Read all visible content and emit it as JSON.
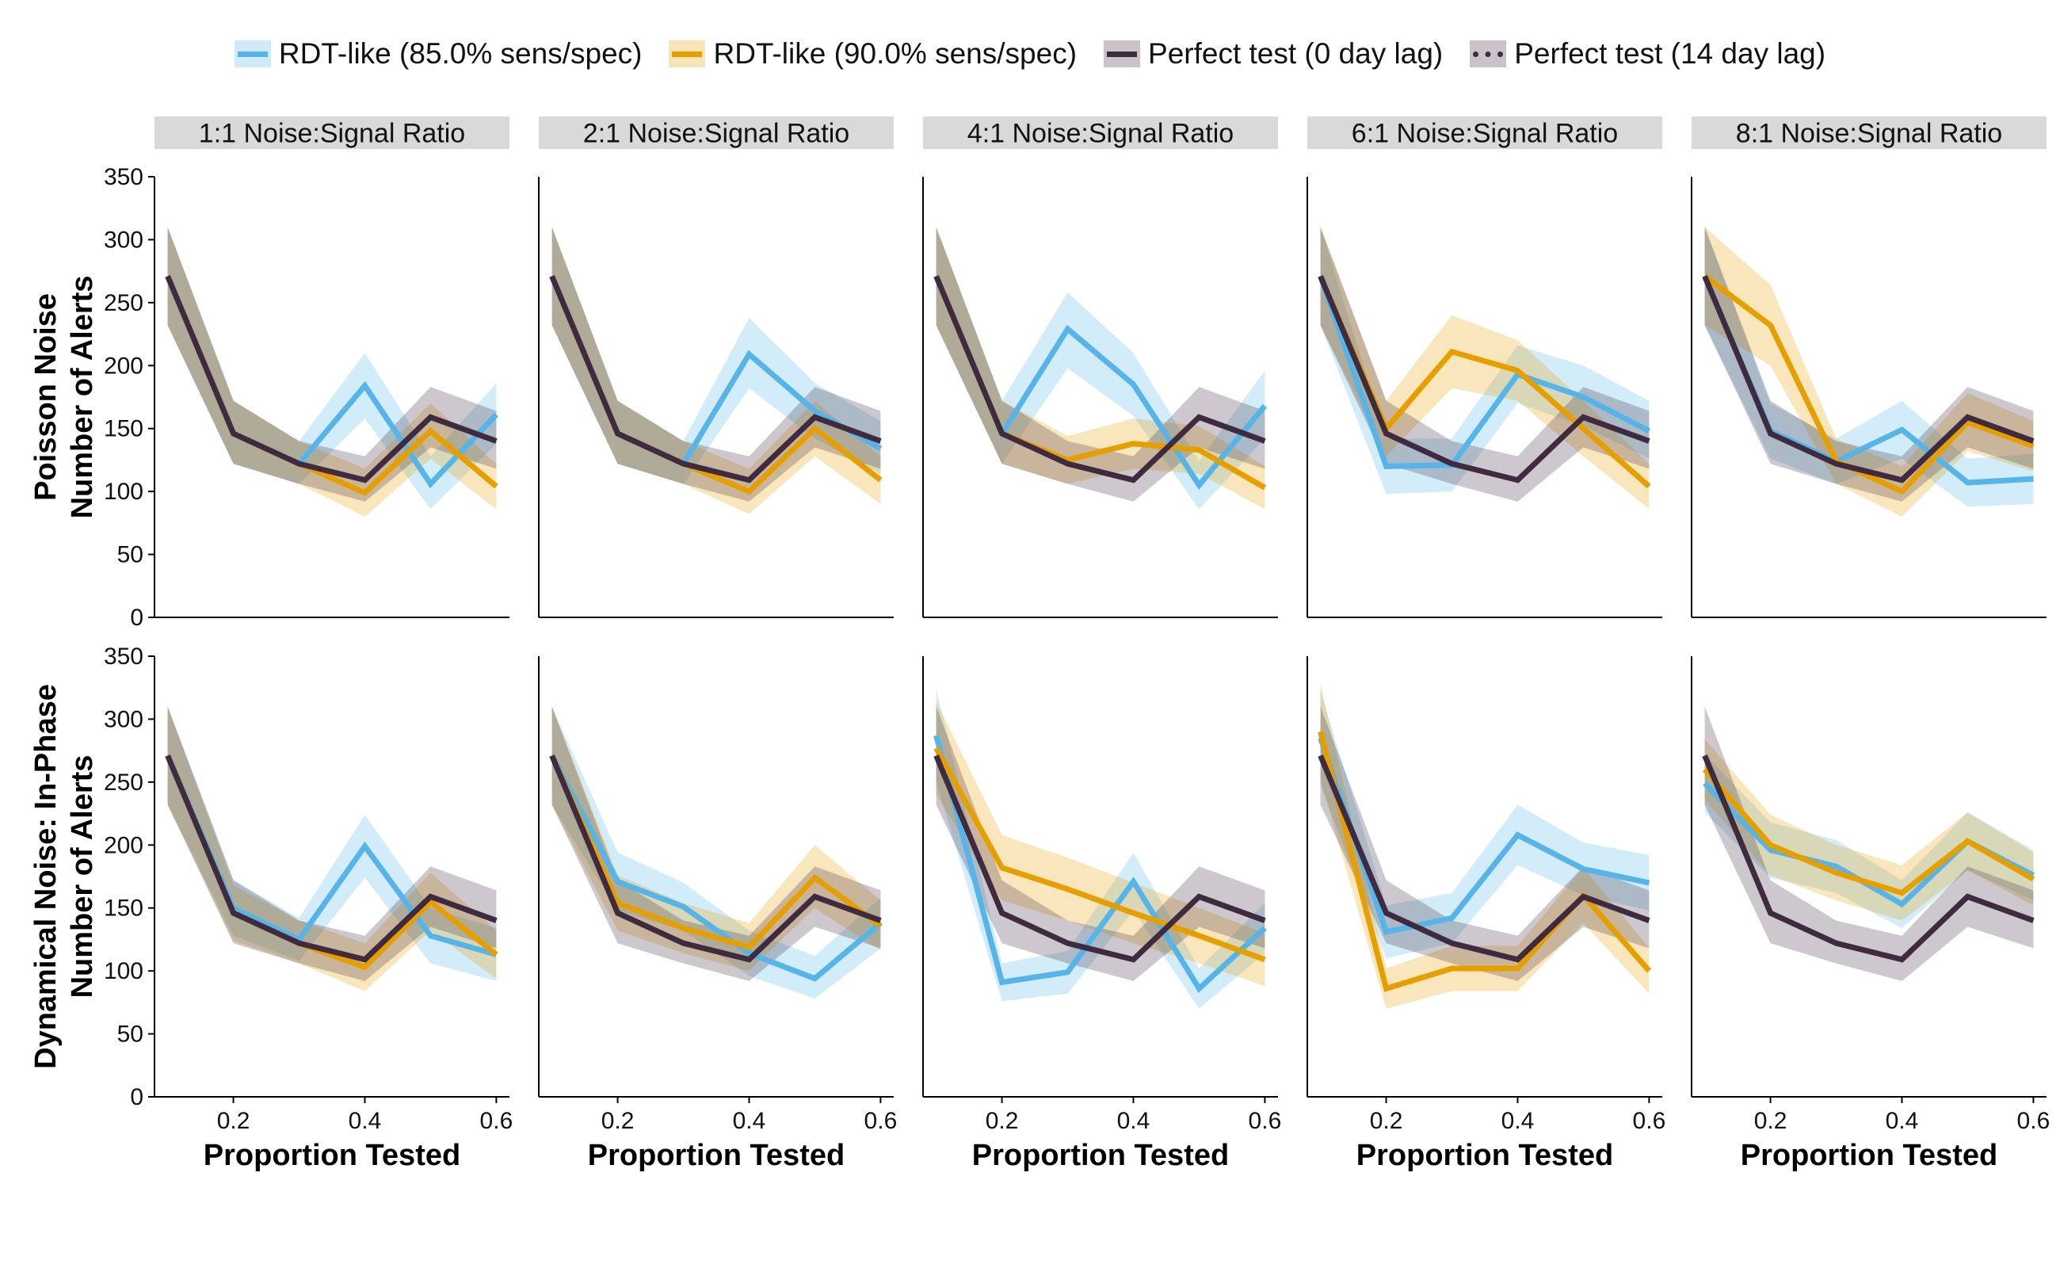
{
  "legend": {
    "placement": "top",
    "items": [
      {
        "label": "RDT-like (85.0% sens/spec)",
        "color": "#56B4E9",
        "style": "solid"
      },
      {
        "label": "RDT-like (90.0% sens/spec)",
        "color": "#E69F00",
        "style": "solid"
      },
      {
        "label": "Perfect test (0 day lag)",
        "color": "#3F2A3F",
        "style": "solid"
      },
      {
        "label": "Perfect test (14 day lag)",
        "color": "#3F2A3F",
        "style": "dotted"
      }
    ]
  },
  "colors": {
    "rdt85": "#56B4E9",
    "rdt90": "#E69F00",
    "perfect": "#3F2A3F",
    "strip_bg": "#D9D9D9"
  },
  "chart_data": {
    "type": "line",
    "columns": [
      "1:1 Noise:Signal Ratio",
      "2:1 Noise:Signal Ratio",
      "4:1 Noise:Signal Ratio",
      "6:1 Noise:Signal Ratio",
      "8:1 Noise:Signal Ratio"
    ],
    "rows": [
      {
        "label": "Poisson Noise\nNumber of Alerts",
        "line1": "Poisson Noise",
        "line2": "Number of Alerts"
      },
      {
        "label": "Dynamical Noise: In-Phase\nNumber of Alerts",
        "line1": "Dynamical Noise: In-Phase",
        "line2": "Number of Alerts"
      }
    ],
    "xlabel": "Proportion Tested",
    "x": [
      0.1,
      0.2,
      0.3,
      0.4,
      0.5,
      0.6
    ],
    "xlim": [
      0.08,
      0.62
    ],
    "xticks": [
      0.2,
      0.4,
      0.6
    ],
    "xtick_labels": [
      "0.2",
      "0.4",
      "0.6"
    ],
    "ylim": [
      0,
      350
    ],
    "yticks": [
      0,
      50,
      100,
      150,
      200,
      250,
      300,
      350
    ],
    "ytick_labels": [
      "0",
      "50",
      "100",
      "150",
      "200",
      "250",
      "300",
      "350"
    ],
    "panels": [
      [
        {
          "perfect": {
            "y": [
              271,
              146,
              122,
              109,
              159,
              140
            ],
            "lo": [
              232,
              122,
              106,
              92,
              135,
              118
            ],
            "hi": [
              310,
              172,
              140,
              128,
              183,
              164
            ]
          },
          "rdt85": {
            "y": [
              271,
              146,
              122,
              184,
              106,
              161
            ],
            "lo": [
              232,
              122,
              106,
              158,
              86,
              138
            ],
            "hi": [
              310,
              172,
              140,
              210,
              128,
              186
            ]
          },
          "rdt90": {
            "y": [
              271,
              146,
              122,
              99,
              148,
              104
            ],
            "lo": [
              232,
              122,
              106,
              80,
              126,
              86
            ],
            "hi": [
              310,
              172,
              140,
              118,
              170,
              122
            ]
          }
        },
        {
          "perfect": {
            "y": [
              271,
              146,
              122,
              109,
              159,
              140
            ],
            "lo": [
              232,
              122,
              106,
              92,
              135,
              118
            ],
            "hi": [
              310,
              172,
              140,
              128,
              183,
              164
            ]
          },
          "rdt85": {
            "y": [
              271,
              146,
              122,
              209,
              164,
              134
            ],
            "lo": [
              232,
              122,
              106,
              182,
              142,
              114
            ],
            "hi": [
              310,
              172,
              140,
              238,
              186,
              156
            ]
          },
          "rdt90": {
            "y": [
              271,
              146,
              122,
              100,
              150,
              109
            ],
            "lo": [
              232,
              122,
              106,
              82,
              128,
              90
            ],
            "hi": [
              310,
              172,
              140,
              118,
              172,
              128
            ]
          }
        },
        {
          "perfect": {
            "y": [
              271,
              146,
              122,
              109,
              159,
              140
            ],
            "lo": [
              232,
              122,
              106,
              92,
              135,
              118
            ],
            "hi": [
              310,
              172,
              140,
              128,
              183,
              164
            ]
          },
          "rdt85": {
            "y": [
              271,
              146,
              229,
              185,
              105,
              168
            ],
            "lo": [
              232,
              122,
              198,
              160,
              86,
              142
            ],
            "hi": [
              310,
              172,
              258,
              210,
              124,
              196
            ]
          },
          "rdt90": {
            "y": [
              271,
              146,
              125,
              138,
              133,
              103
            ],
            "lo": [
              232,
              122,
              106,
              118,
              114,
              86
            ],
            "hi": [
              310,
              172,
              144,
              158,
              152,
              120
            ]
          }
        },
        {
          "perfect": {
            "y": [
              271,
              146,
              122,
              109,
              159,
              140
            ],
            "lo": [
              232,
              122,
              106,
              92,
              135,
              118
            ],
            "hi": [
              310,
              172,
              140,
              128,
              183,
              164
            ]
          },
          "rdt85": {
            "y": [
              271,
              120,
              121,
              193,
              175,
              148
            ],
            "lo": [
              232,
              98,
              100,
              170,
              152,
              126
            ],
            "hi": [
              310,
              142,
              142,
              216,
              200,
              172
            ]
          },
          "rdt90": {
            "y": [
              271,
              150,
              211,
              196,
              150,
              104
            ],
            "lo": [
              232,
              128,
              182,
              172,
              128,
              86
            ],
            "hi": [
              310,
              172,
              240,
              220,
              172,
              122
            ]
          }
        },
        {
          "perfect": {
            "y": [
              271,
              146,
              122,
              109,
              159,
              140
            ],
            "lo": [
              232,
              122,
              106,
              92,
              135,
              118
            ],
            "hi": [
              310,
              172,
              140,
              128,
              183,
              164
            ]
          },
          "rdt85": {
            "y": [
              271,
              148,
              124,
              149,
              107,
              110
            ],
            "lo": [
              232,
              126,
              106,
              126,
              88,
              90
            ],
            "hi": [
              310,
              170,
              142,
              172,
              126,
              130
            ]
          },
          "rdt90": {
            "y": [
              271,
              232,
              124,
              100,
              155,
              136
            ],
            "lo": [
              232,
              200,
              106,
              80,
              132,
              116
            ],
            "hi": [
              310,
              264,
              142,
              120,
              178,
              156
            ]
          }
        }
      ],
      [
        {
          "perfect": {
            "y": [
              271,
              146,
              122,
              109,
              159,
              140
            ],
            "lo": [
              232,
              122,
              106,
              92,
              135,
              118
            ],
            "hi": [
              310,
              172,
              140,
              128,
              183,
              164
            ]
          },
          "rdt85": {
            "y": [
              271,
              150,
              125,
              199,
              128,
              113
            ],
            "lo": [
              232,
              128,
              108,
              174,
              106,
              92
            ],
            "hi": [
              310,
              172,
              142,
              224,
              150,
              134
            ]
          },
          "rdt90": {
            "y": [
              271,
              146,
              122,
              103,
              155,
              113
            ],
            "lo": [
              232,
              124,
              106,
              84,
              132,
              94
            ],
            "hi": [
              310,
              168,
              140,
              122,
              178,
              132
            ]
          }
        },
        {
          "perfect": {
            "y": [
              271,
              146,
              122,
              109,
              159,
              140
            ],
            "lo": [
              232,
              122,
              106,
              92,
              135,
              118
            ],
            "hi": [
              310,
              172,
              140,
              128,
              183,
              164
            ]
          },
          "rdt85": {
            "y": [
              271,
              171,
              151,
              114,
              94,
              138
            ],
            "lo": [
              232,
              148,
              132,
              96,
              78,
              118
            ],
            "hi": [
              310,
              194,
              170,
              132,
              112,
              158
            ]
          },
          "rdt90": {
            "y": [
              271,
              154,
              134,
              119,
              174,
              136
            ],
            "lo": [
              232,
              132,
              114,
              100,
              150,
              116
            ],
            "hi": [
              310,
              176,
              154,
              138,
              200,
              156
            ]
          }
        },
        {
          "perfect": {
            "y": [
              271,
              146,
              122,
              109,
              159,
              140
            ],
            "lo": [
              232,
              122,
              106,
              92,
              135,
              118
            ],
            "hi": [
              310,
              172,
              140,
              128,
              183,
              164
            ]
          },
          "rdt85": {
            "y": [
              287,
              91,
              99,
              171,
              86,
              134
            ],
            "lo": [
              250,
              76,
              82,
              148,
              70,
              114
            ],
            "hi": [
              324,
              106,
              116,
              194,
              102,
              154
            ]
          },
          "rdt90": {
            "y": [
              277,
              182,
              165,
              146,
              128,
              109
            ],
            "lo": [
              240,
              156,
              140,
              122,
              106,
              88
            ],
            "hi": [
              314,
              208,
              190,
              170,
              150,
              130
            ]
          }
        },
        {
          "perfect": {
            "y": [
              271,
              146,
              122,
              109,
              159,
              140
            ],
            "lo": [
              232,
              122,
              106,
              92,
              135,
              118
            ],
            "hi": [
              310,
              172,
              140,
              128,
              183,
              164
            ]
          },
          "rdt85": {
            "y": [
              285,
              131,
              142,
              208,
              181,
              170
            ],
            "lo": [
              248,
              110,
              122,
              184,
              160,
              148
            ],
            "hi": [
              322,
              152,
              162,
              232,
              202,
              192
            ]
          },
          "rdt90": {
            "y": [
              290,
              86,
              102,
              102,
              160,
              100
            ],
            "lo": [
              252,
              70,
              84,
              84,
              138,
              82
            ],
            "hi": [
              328,
              102,
              120,
              120,
              182,
              118
            ]
          }
        },
        {
          "perfect": {
            "y": [
              271,
              146,
              122,
              109,
              159,
              140
            ],
            "lo": [
              232,
              122,
              106,
              92,
              135,
              118
            ],
            "hi": [
              310,
              172,
              140,
              128,
              183,
              164
            ]
          },
          "rdt85": {
            "y": [
              249,
              196,
              183,
              153,
              203,
              176
            ],
            "lo": [
              226,
              174,
              162,
              134,
              180,
              156
            ],
            "hi": [
              272,
              218,
              204,
              172,
              226,
              196
            ]
          },
          "rdt90": {
            "y": [
              260,
              200,
              178,
              162,
              203,
              173
            ],
            "lo": [
              236,
              176,
              156,
              140,
              180,
              152
            ],
            "hi": [
              284,
              224,
              200,
              184,
              226,
              194
            ]
          }
        }
      ]
    ]
  }
}
